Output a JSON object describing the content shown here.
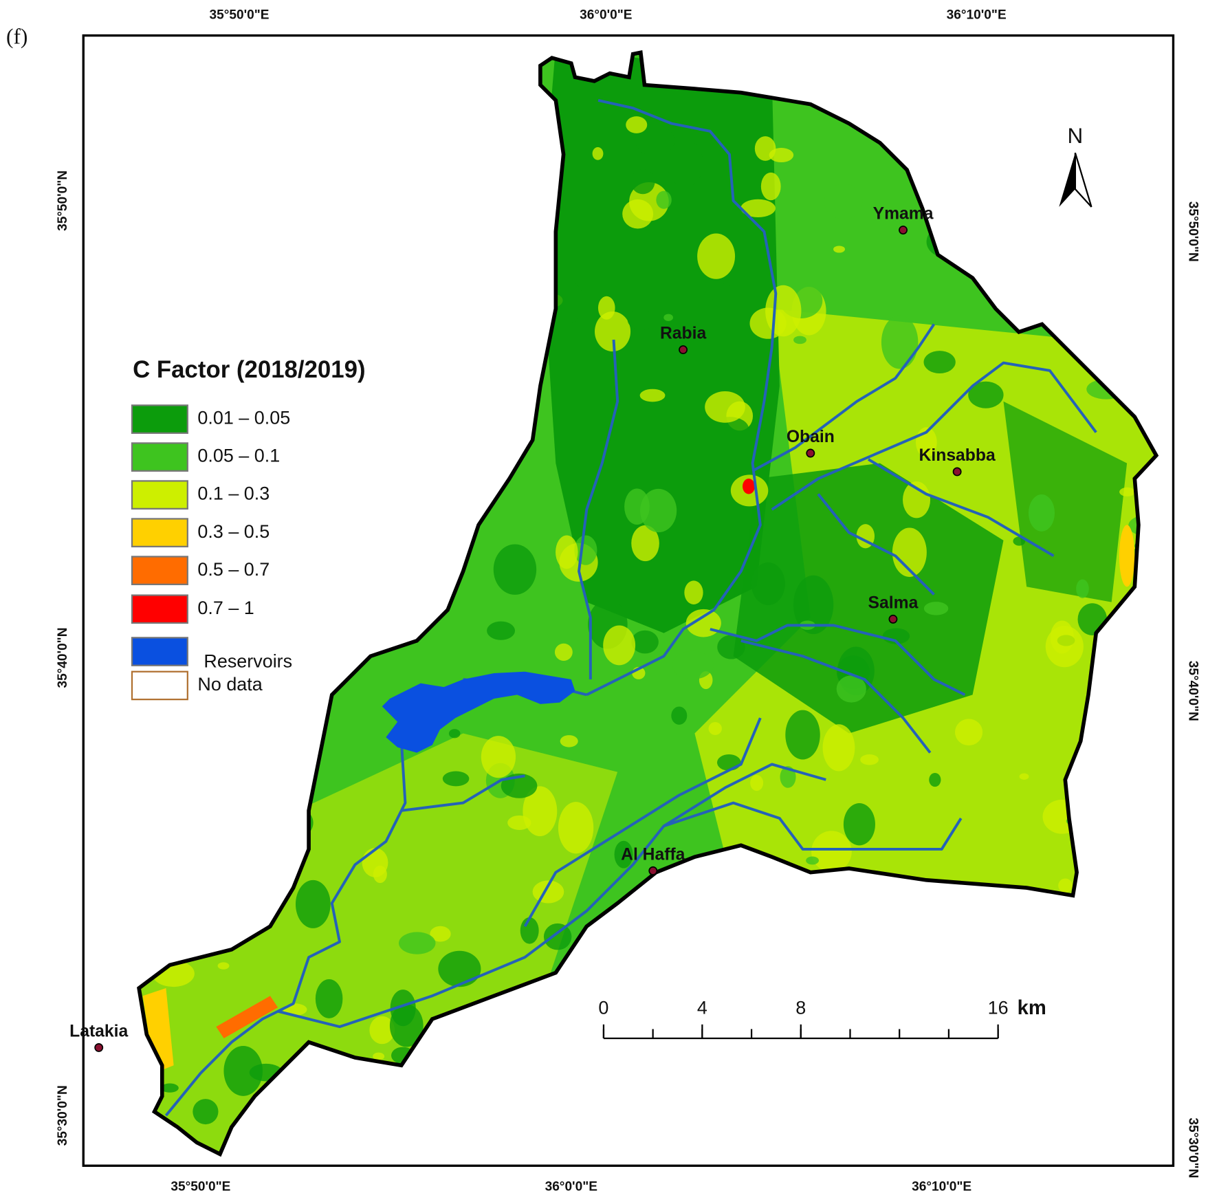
{
  "panel_label": "(f)",
  "graticule": {
    "top": [
      "35°50'0\"E",
      "36°0'0\"E",
      "36°10'0\"E"
    ],
    "bottom": [
      "35°50'0\"E",
      "36°0'0\"E",
      "36°10'0\"E"
    ],
    "left": [
      "35°50'0\"N",
      "35°40'0\"N",
      "35°30'0\"N"
    ],
    "right": [
      "35°50'0\"N",
      "35°40'0\"N",
      "35°30'0\"N"
    ]
  },
  "legend": {
    "title": "C Factor (2018/2019)",
    "items": [
      {
        "label": "0.01 – 0.05",
        "color": "#0c9c0c"
      },
      {
        "label": "0.05 – 0.1",
        "color": "#3ec41f"
      },
      {
        "label": "0.1 – 0.3",
        "color": "#cdef00"
      },
      {
        "label": "0.3 – 0.5",
        "color": "#ffd000"
      },
      {
        "label": "0.5 – 0.7",
        "color": "#ff6c00"
      },
      {
        "label": "0.7 – 1",
        "color": "#ff0000"
      },
      {
        "label": "Reservoirs",
        "color": "#0a50e0"
      },
      {
        "label": "No data",
        "color": "#ffffff"
      }
    ]
  },
  "places": [
    {
      "name": "Ymama"
    },
    {
      "name": "Rabia"
    },
    {
      "name": "Obain"
    },
    {
      "name": "Kinsabba"
    },
    {
      "name": "Salma"
    },
    {
      "name": "Al Haffa"
    },
    {
      "name": "Latakia"
    }
  ],
  "north": "N",
  "scale_bar": {
    "ticks": [
      0,
      4,
      8,
      16
    ],
    "unit": "km"
  }
}
